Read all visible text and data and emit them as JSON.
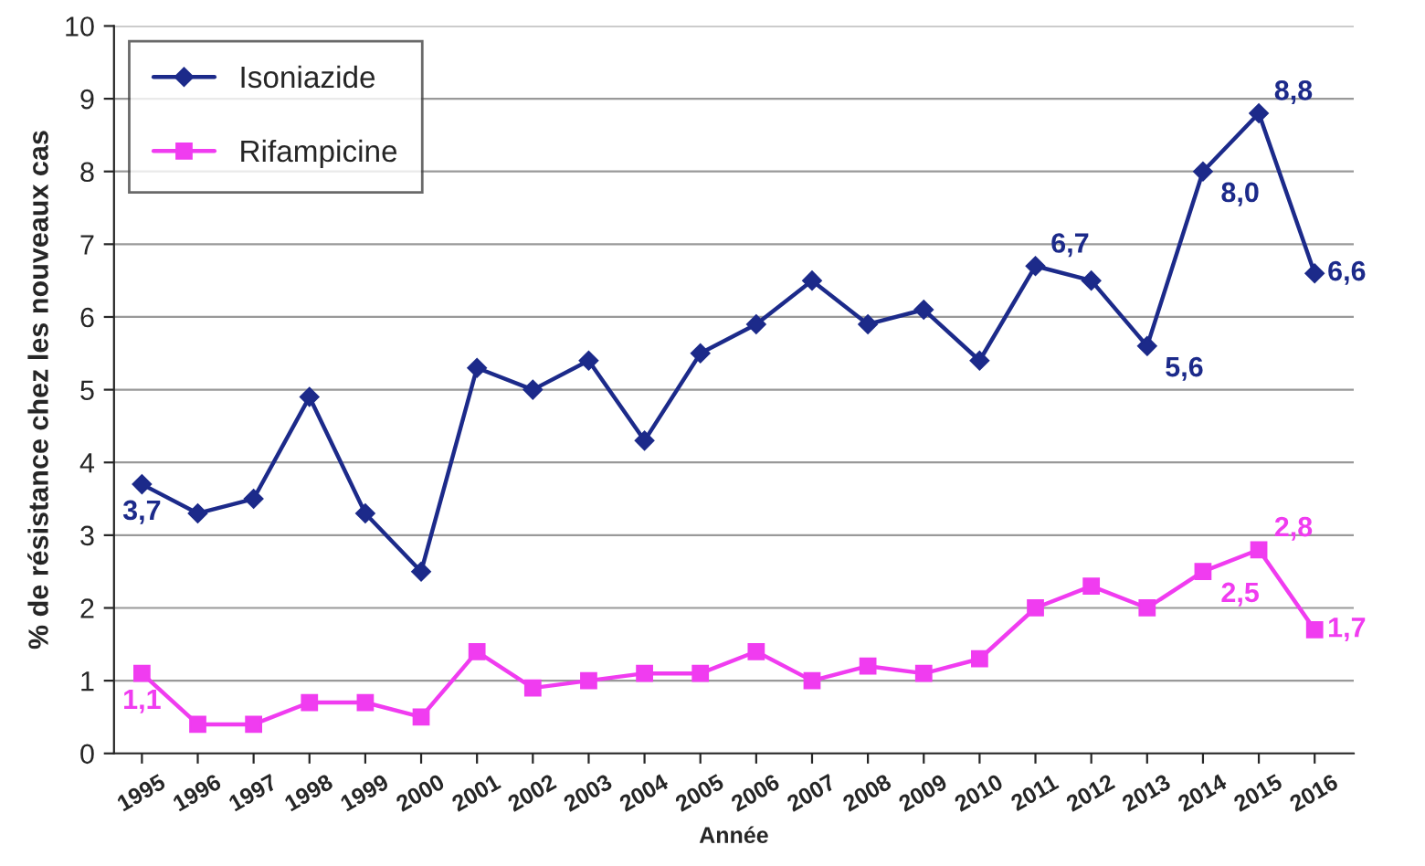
{
  "chart_data": {
    "type": "line",
    "xlabel": "Année",
    "ylabel": "% de résistance chez les nouveaux cas",
    "categories": [
      "1995",
      "1996",
      "1997",
      "1998",
      "1999",
      "2000",
      "2001",
      "2002",
      "2003",
      "2004",
      "2005",
      "2006",
      "2007",
      "2008",
      "2009",
      "2010",
      "2011",
      "2012",
      "2013",
      "2014",
      "2015",
      "2016"
    ],
    "series": [
      {
        "name": "Isoniazide",
        "color": "#1c2a8a",
        "marker": "diamond",
        "values": [
          3.7,
          3.3,
          3.5,
          4.9,
          3.3,
          2.5,
          5.3,
          5.0,
          5.4,
          4.3,
          5.5,
          5.9,
          6.5,
          5.9,
          6.1,
          5.4,
          6.7,
          6.5,
          5.6,
          8.0,
          8.8,
          6.6
        ],
        "value_labels": [
          "3,7",
          null,
          null,
          null,
          null,
          null,
          null,
          null,
          null,
          null,
          null,
          null,
          null,
          null,
          null,
          null,
          "6,7",
          null,
          "5,6",
          "8,0",
          "8,8",
          "6,6"
        ]
      },
      {
        "name": "Rifampicine",
        "color": "#f03cf0",
        "marker": "square",
        "values": [
          1.1,
          0.4,
          0.4,
          0.7,
          0.7,
          0.5,
          1.4,
          0.9,
          1.0,
          1.1,
          1.1,
          1.4,
          1.0,
          1.2,
          1.1,
          1.3,
          2.0,
          2.3,
          2.0,
          2.5,
          2.8,
          1.7
        ],
        "value_labels": [
          "1,1",
          null,
          null,
          null,
          null,
          null,
          null,
          null,
          null,
          null,
          null,
          null,
          null,
          null,
          null,
          null,
          null,
          null,
          null,
          "2,5",
          "2,8",
          "1,7"
        ]
      }
    ],
    "ylim": [
      0,
      10
    ],
    "yticks": [
      0,
      1,
      2,
      3,
      4,
      5,
      6,
      7,
      8,
      9,
      10
    ],
    "grid": "y",
    "legend": "top left",
    "line_style": "solid"
  }
}
